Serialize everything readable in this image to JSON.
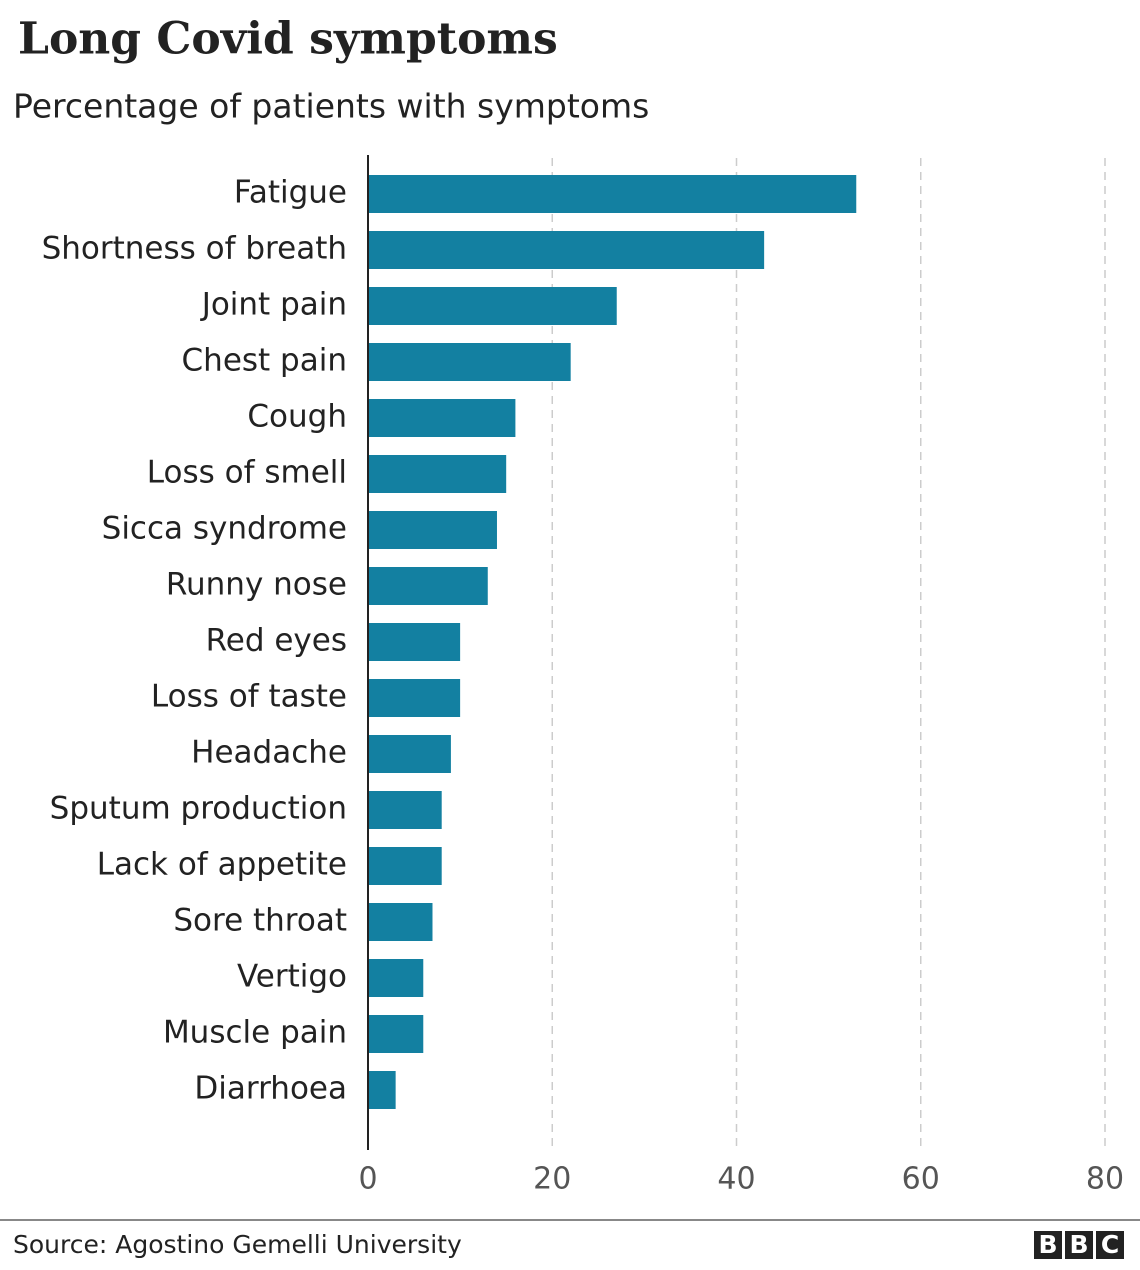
{
  "chart_data": {
    "type": "bar",
    "orientation": "horizontal",
    "title": "Long Covid symptoms",
    "subtitle": "Percentage of patients with symptoms",
    "categories": [
      "Fatigue",
      "Shortness of breath",
      "Joint pain",
      "Chest pain",
      "Cough",
      "Loss of smell",
      "Sicca syndrome",
      "Runny nose",
      "Red eyes",
      "Loss of taste",
      "Headache",
      "Sputum production",
      "Lack of appetite",
      "Sore throat",
      "Vertigo",
      "Muscle pain",
      "Diarrhoea"
    ],
    "values": [
      53,
      43,
      27,
      22,
      16,
      15,
      14,
      13,
      10,
      10,
      9,
      8,
      8,
      7,
      6,
      6,
      3
    ],
    "color": "#1380a1",
    "xlim": [
      0,
      80
    ],
    "xticks": [
      0,
      20,
      40,
      60,
      80
    ],
    "grid": true,
    "source": "Source: Agostino Gemelli University",
    "logo": [
      "B",
      "B",
      "C"
    ]
  }
}
